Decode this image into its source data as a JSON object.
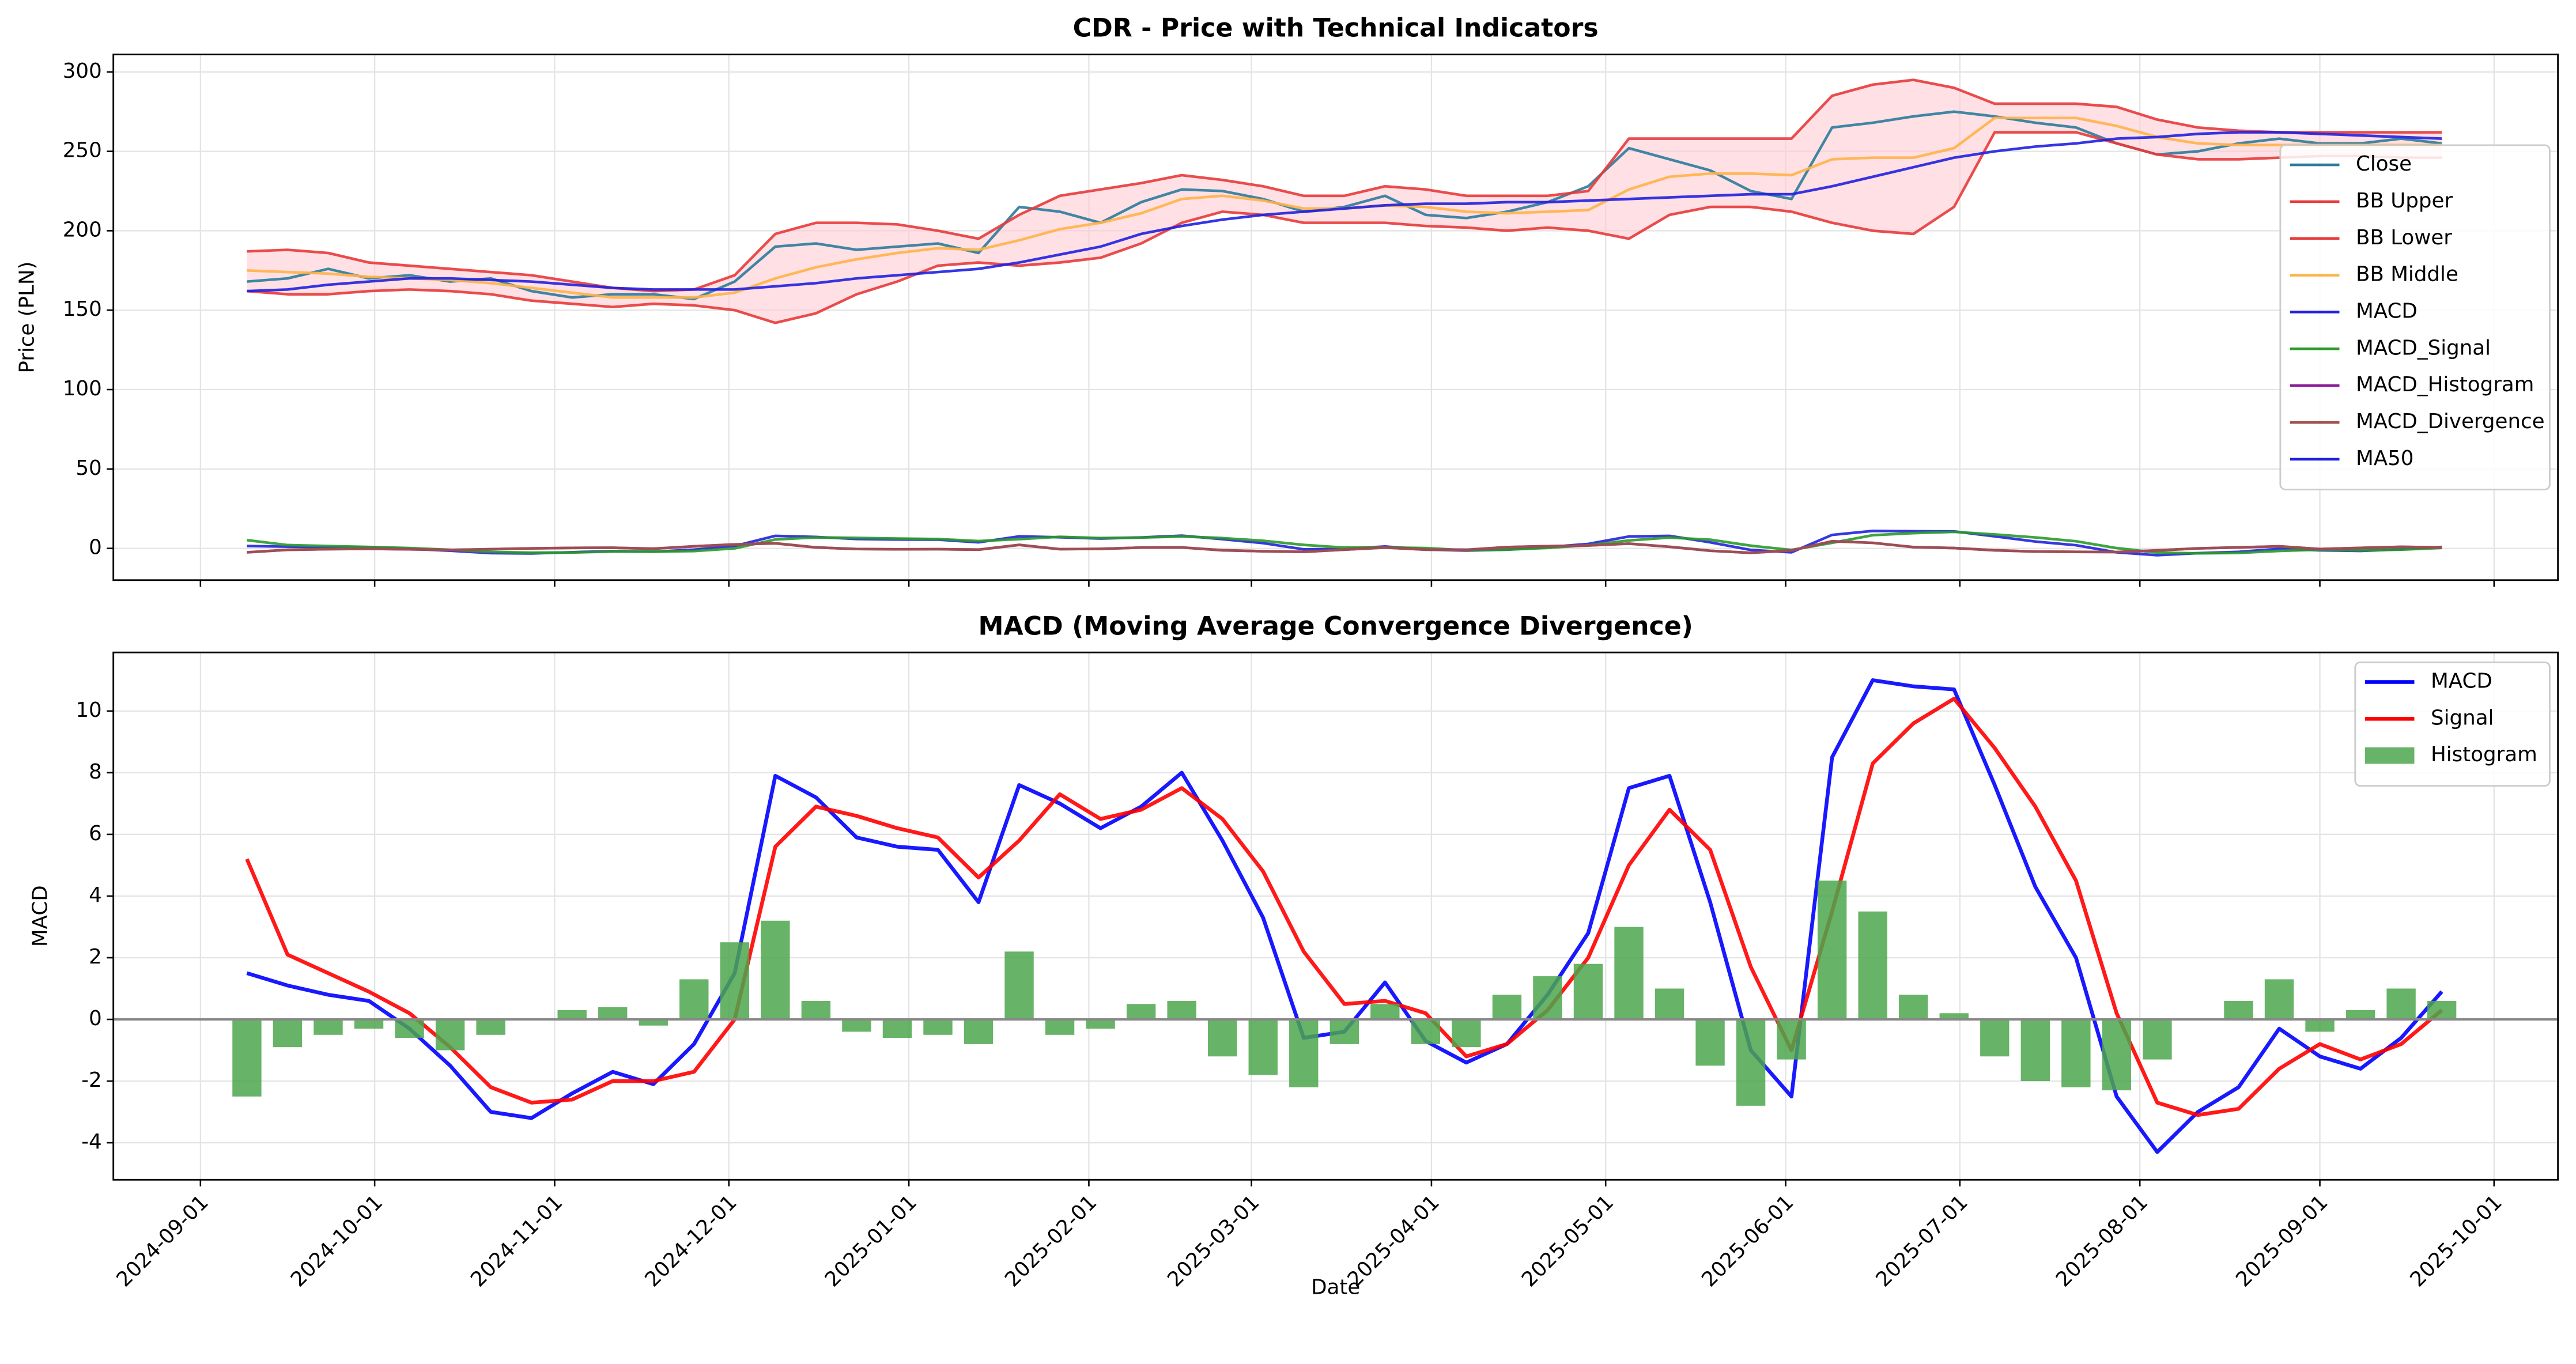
{
  "chart_data": [
    {
      "type": "line",
      "title": "CDR - Price with Technical Indicators",
      "ylabel": "Price (PLN)",
      "x": [
        "2024-09-09",
        "2024-09-16",
        "2024-09-23",
        "2024-09-30",
        "2024-10-07",
        "2024-10-14",
        "2024-10-21",
        "2024-10-28",
        "2024-11-04",
        "2024-11-11",
        "2024-11-18",
        "2024-11-25",
        "2024-12-02",
        "2024-12-09",
        "2024-12-16",
        "2024-12-23",
        "2024-12-30",
        "2025-01-06",
        "2025-01-13",
        "2025-01-20",
        "2025-01-27",
        "2025-02-03",
        "2025-02-10",
        "2025-02-17",
        "2025-02-24",
        "2025-03-03",
        "2025-03-10",
        "2025-03-17",
        "2025-03-24",
        "2025-03-31",
        "2025-04-07",
        "2025-04-14",
        "2025-04-21",
        "2025-04-28",
        "2025-05-05",
        "2025-05-12",
        "2025-05-19",
        "2025-05-26",
        "2025-06-02",
        "2025-06-09",
        "2025-06-16",
        "2025-06-23",
        "2025-06-30",
        "2025-07-07",
        "2025-07-14",
        "2025-07-21",
        "2025-07-28",
        "2025-08-04",
        "2025-08-11",
        "2025-08-18",
        "2025-08-25",
        "2025-09-01",
        "2025-09-08",
        "2025-09-15",
        "2025-09-22"
      ],
      "xlim": [
        "2024-08-17",
        "2025-10-12"
      ],
      "ylim": [
        -20,
        311
      ],
      "yticks": [
        0,
        50,
        100,
        150,
        200,
        250,
        300
      ],
      "grid": true,
      "legend": "center right",
      "band": {
        "series": [
          1,
          2
        ],
        "color": "#ffccd2"
      },
      "series": [
        {
          "name": "Close",
          "color": "#2b7b9b",
          "values": [
            168,
            170,
            176,
            170,
            172,
            168,
            170,
            162,
            158,
            160,
            160,
            157,
            168,
            190,
            192,
            188,
            190,
            192,
            186,
            215,
            212,
            205,
            218,
            226,
            225,
            220,
            212,
            215,
            222,
            210,
            208,
            212,
            218,
            228,
            252,
            245,
            238,
            225,
            220,
            265,
            268,
            272,
            275,
            272,
            268,
            265,
            255,
            248,
            250,
            255,
            258,
            255,
            255,
            258,
            255
          ]
        },
        {
          "name": "BB Upper",
          "color": "#e83a3a",
          "values": [
            187,
            188,
            186,
            180,
            178,
            176,
            174,
            172,
            168,
            164,
            162,
            163,
            172,
            198,
            205,
            205,
            204,
            200,
            195,
            210,
            222,
            226,
            230,
            235,
            232,
            228,
            222,
            222,
            228,
            226,
            222,
            222,
            222,
            225,
            258,
            258,
            258,
            258,
            258,
            285,
            292,
            295,
            290,
            280,
            280,
            280,
            278,
            270,
            265,
            263,
            262,
            262,
            262,
            262,
            262
          ]
        },
        {
          "name": "BB Lower",
          "color": "#e83a3a",
          "values": [
            162,
            160,
            160,
            162,
            163,
            162,
            160,
            156,
            154,
            152,
            154,
            153,
            150,
            142,
            148,
            160,
            168,
            178,
            180,
            178,
            180,
            183,
            192,
            205,
            212,
            210,
            205,
            205,
            205,
            203,
            202,
            200,
            202,
            200,
            195,
            210,
            215,
            215,
            212,
            205,
            200,
            198,
            215,
            262,
            262,
            262,
            255,
            248,
            245,
            245,
            246,
            247,
            247,
            246,
            246
          ]
        },
        {
          "name": "BB Middle",
          "color": "#ffb347",
          "values": [
            175,
            174,
            173,
            171,
            170,
            169,
            167,
            164,
            161,
            158,
            158,
            158,
            161,
            170,
            177,
            182,
            186,
            189,
            188,
            194,
            201,
            205,
            211,
            220,
            222,
            219,
            214,
            214,
            216,
            215,
            212,
            211,
            212,
            213,
            226,
            234,
            236,
            236,
            235,
            245,
            246,
            246,
            252,
            271,
            271,
            271,
            266,
            259,
            255,
            254,
            254,
            254,
            254,
            254,
            254
          ]
        },
        {
          "name": "MACD",
          "color": "#2222dd",
          "values": [
            1.5,
            1.1,
            0.8,
            0.6,
            -0.3,
            -1.5,
            -3.0,
            -3.2,
            -2.4,
            -1.7,
            -2.1,
            -0.8,
            1.5,
            7.9,
            7.2,
            5.9,
            5.6,
            5.5,
            3.8,
            7.6,
            7.0,
            6.2,
            6.9,
            8.0,
            5.8,
            3.3,
            -0.6,
            -0.4,
            1.2,
            -0.7,
            -1.4,
            -0.8,
            0.8,
            2.8,
            7.5,
            7.9,
            3.8,
            -1.0,
            -2.5,
            8.5,
            11.0,
            10.8,
            10.7,
            7.6,
            4.3,
            2.0,
            -2.5,
            -4.3,
            -3.0,
            -2.2,
            -0.3,
            -1.2,
            -1.6,
            -0.6,
            0.9
          ]
        },
        {
          "name": "MACD_Signal",
          "color": "#2a9a2a",
          "values": [
            5.2,
            2.1,
            1.5,
            0.9,
            0.2,
            -0.9,
            -2.2,
            -2.7,
            -2.6,
            -2.0,
            -2.0,
            -1.7,
            0.0,
            5.6,
            6.9,
            6.6,
            6.2,
            5.9,
            4.6,
            5.8,
            7.3,
            6.5,
            6.8,
            7.5,
            6.5,
            4.8,
            2.2,
            0.5,
            0.6,
            0.2,
            -1.2,
            -0.8,
            0.3,
            2.0,
            5.0,
            6.8,
            5.5,
            1.7,
            -1.0,
            3.5,
            8.3,
            9.6,
            10.4,
            8.8,
            6.9,
            4.5,
            0.2,
            -2.7,
            -3.1,
            -2.9,
            -1.6,
            -0.8,
            -1.3,
            -0.8,
            0.3
          ]
        },
        {
          "name": "MACD_Histogram",
          "color": "#8b1a9b",
          "values": [
            -2.5,
            -0.9,
            -0.5,
            -0.3,
            -0.6,
            -1.0,
            -0.5,
            0.0,
            0.3,
            0.4,
            -0.2,
            1.3,
            2.5,
            3.2,
            0.6,
            -0.4,
            -0.6,
            -0.5,
            -0.8,
            2.2,
            -0.5,
            -0.3,
            0.5,
            0.6,
            -1.2,
            -1.8,
            -2.2,
            -0.8,
            0.5,
            -0.8,
            -0.9,
            0.8,
            1.4,
            1.8,
            3.0,
            1.0,
            -1.5,
            -2.8,
            -1.3,
            4.5,
            3.5,
            0.8,
            0.2,
            -1.2,
            -2.0,
            -2.2,
            -2.3,
            -1.3,
            0.0,
            0.6,
            1.3,
            -0.4,
            0.3,
            1.0,
            0.6
          ]
        },
        {
          "name": "MACD_Divergence",
          "color": "#a0524a",
          "values": [
            -2.5,
            -0.9,
            -0.5,
            -0.3,
            -0.6,
            -1.0,
            -0.5,
            0.0,
            0.3,
            0.4,
            -0.2,
            1.3,
            2.5,
            3.2,
            0.6,
            -0.4,
            -0.6,
            -0.5,
            -0.8,
            2.2,
            -0.5,
            -0.3,
            0.5,
            0.6,
            -1.2,
            -1.8,
            -2.2,
            -0.8,
            0.5,
            -0.8,
            -0.9,
            0.8,
            1.4,
            1.8,
            3.0,
            1.0,
            -1.5,
            -2.8,
            -1.3,
            4.5,
            3.5,
            0.8,
            0.2,
            -1.2,
            -2.0,
            -2.2,
            -2.3,
            -1.3,
            0.0,
            0.6,
            1.3,
            -0.4,
            0.3,
            1.0,
            0.6
          ]
        },
        {
          "name": "MA50",
          "color": "#2020e0",
          "values": [
            162,
            163,
            166,
            168,
            170,
            170,
            169,
            168,
            166,
            164,
            163,
            163,
            163,
            165,
            167,
            170,
            172,
            174,
            176,
            180,
            185,
            190,
            198,
            203,
            207,
            210,
            212,
            214,
            216,
            217,
            217,
            218,
            218,
            219,
            220,
            221,
            222,
            223,
            223,
            228,
            234,
            240,
            246,
            250,
            253,
            255,
            258,
            259,
            261,
            262,
            262,
            261,
            260,
            259,
            258
          ]
        }
      ]
    },
    {
      "type": "line",
      "title": "MACD (Moving Average Convergence Divergence)",
      "ylabel": "MACD",
      "xlabel": "Date",
      "x": [
        "2024-09-09",
        "2024-09-16",
        "2024-09-23",
        "2024-09-30",
        "2024-10-07",
        "2024-10-14",
        "2024-10-21",
        "2024-10-28",
        "2024-11-04",
        "2024-11-11",
        "2024-11-18",
        "2024-11-25",
        "2024-12-02",
        "2024-12-09",
        "2024-12-16",
        "2024-12-23",
        "2024-12-30",
        "2025-01-06",
        "2025-01-13",
        "2025-01-20",
        "2025-01-27",
        "2025-02-03",
        "2025-02-10",
        "2025-02-17",
        "2025-02-24",
        "2025-03-03",
        "2025-03-10",
        "2025-03-17",
        "2025-03-24",
        "2025-03-31",
        "2025-04-07",
        "2025-04-14",
        "2025-04-21",
        "2025-04-28",
        "2025-05-05",
        "2025-05-12",
        "2025-05-19",
        "2025-05-26",
        "2025-06-02",
        "2025-06-09",
        "2025-06-16",
        "2025-06-23",
        "2025-06-30",
        "2025-07-07",
        "2025-07-14",
        "2025-07-21",
        "2025-07-28",
        "2025-08-04",
        "2025-08-11",
        "2025-08-18",
        "2025-08-25",
        "2025-09-01",
        "2025-09-08",
        "2025-09-15",
        "2025-09-22"
      ],
      "xlim": [
        "2024-08-17",
        "2025-10-12"
      ],
      "xticks": [
        "2024-09-01",
        "2024-10-01",
        "2024-11-01",
        "2024-12-01",
        "2025-01-01",
        "2025-02-01",
        "2025-03-01",
        "2025-04-01",
        "2025-05-01",
        "2025-06-01",
        "2025-07-01",
        "2025-08-01",
        "2025-09-01",
        "2025-10-01"
      ],
      "ylim": [
        -5.2,
        11.9
      ],
      "yticks": [
        -4,
        -2,
        0,
        2,
        4,
        6,
        8,
        10
      ],
      "grid": true,
      "legend": "upper right",
      "hline": 0,
      "series": [
        {
          "name": "MACD",
          "color": "#0000ff",
          "values": [
            1.5,
            1.1,
            0.8,
            0.6,
            -0.3,
            -1.5,
            -3.0,
            -3.2,
            -2.4,
            -1.7,
            -2.1,
            -0.8,
            1.5,
            7.9,
            7.2,
            5.9,
            5.6,
            5.5,
            3.8,
            7.6,
            7.0,
            6.2,
            6.9,
            8.0,
            5.8,
            3.3,
            -0.6,
            -0.4,
            1.2,
            -0.7,
            -1.4,
            -0.8,
            0.8,
            2.8,
            7.5,
            7.9,
            3.8,
            -1.0,
            -2.5,
            8.5,
            11.0,
            10.8,
            10.7,
            7.6,
            4.3,
            2.0,
            -2.5,
            -4.3,
            -3.0,
            -2.2,
            -0.3,
            -1.2,
            -1.6,
            -0.6,
            0.9
          ]
        },
        {
          "name": "Signal",
          "color": "#ff0000",
          "values": [
            5.2,
            2.1,
            1.5,
            0.9,
            0.2,
            -0.9,
            -2.2,
            -2.7,
            -2.6,
            -2.0,
            -2.0,
            -1.7,
            0.0,
            5.6,
            6.9,
            6.6,
            6.2,
            5.9,
            4.6,
            5.8,
            7.3,
            6.5,
            6.8,
            7.5,
            6.5,
            4.8,
            2.2,
            0.5,
            0.6,
            0.2,
            -1.2,
            -0.8,
            0.3,
            2.0,
            5.0,
            6.8,
            5.5,
            1.7,
            -1.0,
            3.5,
            8.3,
            9.6,
            10.4,
            8.8,
            6.9,
            4.5,
            0.2,
            -2.7,
            -3.1,
            -2.9,
            -1.6,
            -0.8,
            -1.3,
            -0.8,
            0.3
          ]
        },
        {
          "name": "Histogram",
          "type": "bar",
          "color": "#4ca64c",
          "values": [
            -2.5,
            -0.9,
            -0.5,
            -0.3,
            -0.6,
            -1.0,
            -0.5,
            0.0,
            0.3,
            0.4,
            -0.2,
            1.3,
            2.5,
            3.2,
            0.6,
            -0.4,
            -0.6,
            -0.5,
            -0.8,
            2.2,
            -0.5,
            -0.3,
            0.5,
            0.6,
            -1.2,
            -1.8,
            -2.2,
            -0.8,
            0.5,
            -0.8,
            -0.9,
            0.8,
            1.4,
            1.8,
            3.0,
            1.0,
            -1.5,
            -2.8,
            -1.3,
            4.5,
            3.5,
            0.8,
            0.2,
            -1.2,
            -2.0,
            -2.2,
            -2.3,
            -1.3,
            0.0,
            0.6,
            1.3,
            -0.4,
            0.3,
            1.0,
            0.6
          ]
        }
      ]
    }
  ]
}
